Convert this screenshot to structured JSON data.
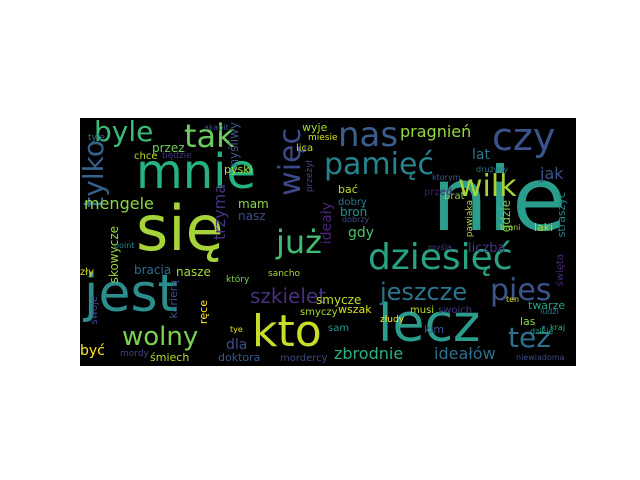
{
  "wordcloud": {
    "background": "#000000",
    "words": [
      {
        "text": "nie",
        "color": "#2a9d8c"
      },
      {
        "text": "się",
        "color": "#a7d33a"
      },
      {
        "text": "jest",
        "color": "#2c8e8c"
      },
      {
        "text": "kto",
        "color": "#c8dc2a"
      },
      {
        "text": "lecz",
        "color": "#2a9d8c"
      },
      {
        "text": "dziesięć",
        "color": "#27a383"
      },
      {
        "text": "mnie",
        "color": "#25b27e"
      },
      {
        "text": "nas",
        "color": "#3a5e8b"
      },
      {
        "text": "czy",
        "color": "#3b538b"
      },
      {
        "text": "tak",
        "color": "#6ccb5d"
      },
      {
        "text": "byle",
        "color": "#3bbb76"
      },
      {
        "text": "pamięć",
        "color": "#26848e"
      },
      {
        "text": "wilk",
        "color": "#a7d33a"
      },
      {
        "text": "już",
        "color": "#3fbc73"
      },
      {
        "text": "więc",
        "color": "#3d4a89"
      },
      {
        "text": "tylko",
        "color": "#33638d"
      },
      {
        "text": "jeszcze",
        "color": "#2c738e"
      },
      {
        "text": "pies",
        "color": "#3a548c"
      },
      {
        "text": "też",
        "color": "#2d708e"
      },
      {
        "text": "wolny",
        "color": "#7ad151"
      },
      {
        "text": "szkielet",
        "color": "#46307e"
      },
      {
        "text": "pragnień",
        "color": "#95d840"
      },
      {
        "text": "mengele",
        "color": "#8fd744"
      },
      {
        "text": "zbrodnie",
        "color": "#2cb17e"
      },
      {
        "text": "ideałów",
        "color": "#2e6f8e"
      },
      {
        "text": "trzyma",
        "color": "#46327e"
      },
      {
        "text": "ideały",
        "color": "#482576"
      },
      {
        "text": "mam",
        "color": "#8bd646"
      },
      {
        "text": "nasz",
        "color": "#3e4a89"
      },
      {
        "text": "broń",
        "color": "#1f948c"
      },
      {
        "text": "jak",
        "color": "#3b5289"
      },
      {
        "text": "lat",
        "color": "#2b758e"
      },
      {
        "text": "gdy",
        "color": "#4ac16d"
      },
      {
        "text": "przez",
        "color": "#6ece58"
      },
      {
        "text": "być",
        "color": "#fde725"
      },
      {
        "text": "dla",
        "color": "#3e4c8a"
      },
      {
        "text": "bracia",
        "color": "#2e6e8e"
      },
      {
        "text": "nasze",
        "color": "#a2da37"
      },
      {
        "text": "smycze",
        "color": "#c2df23"
      },
      {
        "text": "liczba",
        "color": "#453882"
      },
      {
        "text": "gdzie",
        "color": "#75d054"
      },
      {
        "text": "doktora",
        "color": "#38588c"
      },
      {
        "text": "śmiech",
        "color": "#b5de2b"
      },
      {
        "text": "mordercy",
        "color": "#3e4989"
      },
      {
        "text": "wyje",
        "color": "#9fda3a"
      },
      {
        "text": "myśliwy",
        "color": "#3a548c"
      },
      {
        "text": "pyski",
        "color": "#aadc32"
      },
      {
        "text": "skowycze",
        "color": "#9bd93c"
      },
      {
        "text": "karierą",
        "color": "#3b528b"
      },
      {
        "text": "ręce",
        "color": "#fde725"
      },
      {
        "text": "bać",
        "color": "#c0df25"
      },
      {
        "text": "straszyć",
        "color": "#25838e"
      },
      {
        "text": "święta",
        "color": "#482878"
      },
      {
        "text": "twarze",
        "color": "#20a386"
      },
      {
        "text": "las",
        "color": "#84d44b"
      },
      {
        "text": "kim",
        "color": "#3b528b"
      },
      {
        "text": "laki",
        "color": "#a5db36"
      },
      {
        "text": "brat",
        "color": "#8ed645"
      },
      {
        "text": "pawiaka",
        "color": "#a0da39"
      },
      {
        "text": "przed",
        "color": "#48186a"
      },
      {
        "text": "dobry",
        "color": "#2a788e"
      },
      {
        "text": "wszak",
        "color": "#dde318"
      },
      {
        "text": "złudy",
        "color": "#fde725"
      },
      {
        "text": "sancho",
        "color": "#a5db36"
      },
      {
        "text": "musi",
        "color": "#bddf26"
      },
      {
        "text": "swoich",
        "color": "#433e85"
      },
      {
        "text": "niewiadoma",
        "color": "#3e4a89"
      },
      {
        "text": "ludzi",
        "color": "#2a788e"
      },
      {
        "text": "sam",
        "color": "#1f988b"
      },
      {
        "text": "który",
        "color": "#7fd34e"
      },
      {
        "text": "zły",
        "color": "#dde318"
      },
      {
        "text": "chce",
        "color": "#bddf26"
      },
      {
        "text": "przeżył",
        "color": "#414487"
      },
      {
        "text": "dobrzy",
        "color": "#3e4a89"
      },
      {
        "text": "myślą",
        "color": "#433e85"
      },
      {
        "text": "broni",
        "color": "#9bd93c"
      },
      {
        "text": "smyczy",
        "color": "#addc30"
      },
      {
        "text": "swoje",
        "color": "#3f4889"
      },
      {
        "text": "ten",
        "color": "#d5e21a"
      },
      {
        "text": "drużyny",
        "color": "#2a788e"
      },
      {
        "text": "dzikie",
        "color": "#22a785"
      },
      {
        "text": "ktorym",
        "color": "#38588c"
      },
      {
        "text": "będzie",
        "color": "#463480"
      },
      {
        "text": "lica",
        "color": "#c2df23"
      },
      {
        "text": "miesie",
        "color": "#d8e219"
      },
      {
        "text": "akapit",
        "color": "#3b528b"
      },
      {
        "text": "tyle",
        "color": "#2d708e"
      },
      {
        "text": "mordy",
        "color": "#404688"
      },
      {
        "text": "point",
        "color": "#238a8d"
      },
      {
        "text": "tye",
        "color": "#e7e419"
      },
      {
        "text": "kraj",
        "color": "#31b57b"
      }
    ]
  }
}
